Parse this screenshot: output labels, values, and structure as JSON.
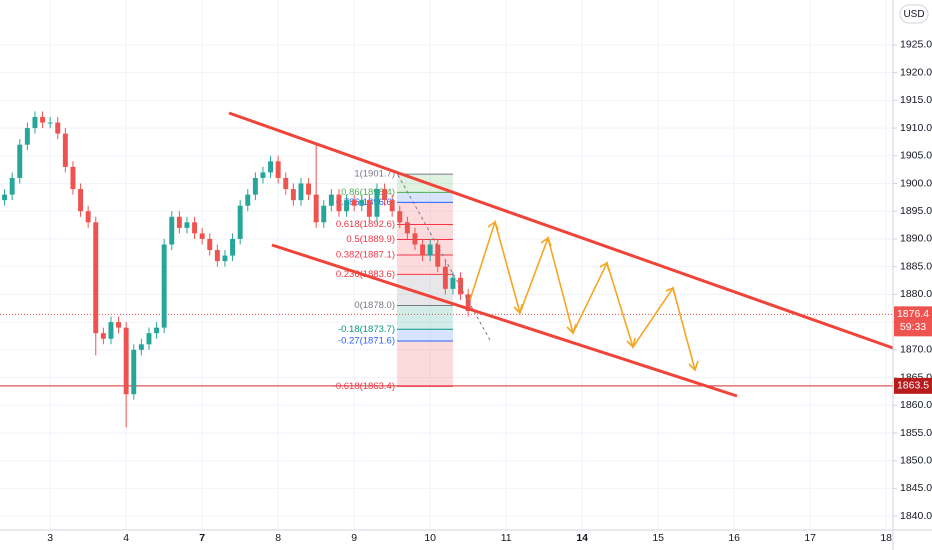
{
  "chart_data": {
    "type": "candlestick",
    "currency": "USD",
    "x": [
      -0.6,
      -0.5,
      -0.4,
      -0.3,
      -0.2,
      -0.1,
      0,
      0.1,
      0.2,
      0.3,
      0.4,
      0.5,
      0.6,
      0.7,
      0.8,
      0.9,
      1,
      1.1,
      1.2,
      1.3,
      1.4,
      1.5,
      1.6,
      1.7,
      1.8,
      1.9,
      2,
      2.1,
      2.2,
      2.3,
      2.4,
      2.5,
      2.6,
      2.7,
      2.8,
      2.9,
      3,
      3.1,
      3.2,
      3.3,
      3.4,
      3.5,
      3.6,
      3.7,
      3.8,
      3.9,
      4,
      4.1,
      4.2,
      4.3,
      4.4,
      4.5,
      4.6,
      4.7,
      4.8,
      4.9,
      5,
      5.1,
      5.2,
      5.3,
      5.4,
      5.5
    ],
    "open": [
      1897,
      1898,
      1901,
      1907,
      1910,
      1912,
      1911,
      1911,
      1909,
      1903,
      1899,
      1895,
      1893,
      1873,
      1872,
      1875,
      1874,
      1862,
      1870,
      1871,
      1873,
      1874,
      1889,
      1894,
      1892,
      1893,
      1891,
      1890,
      1888,
      1886,
      1887,
      1890,
      1896,
      1898,
      1901,
      1902,
      1904,
      1901,
      1899,
      1897,
      1900,
      1898,
      1893,
      1896,
      1898,
      1895,
      1897,
      1896,
      1897,
      1894,
      1899,
      1897,
      1895,
      1893,
      1891,
      1889,
      1887,
      1889,
      1885,
      1881,
      1883,
      1880
    ],
    "high": [
      1899,
      1902,
      1908,
      1911,
      1913,
      1913,
      1912,
      1912,
      1910,
      1904,
      1900,
      1896,
      1894,
      1874,
      1876,
      1876,
      1875,
      1871,
      1872,
      1874,
      1875,
      1890,
      1895,
      1895,
      1894,
      1894,
      1892,
      1891,
      1889,
      1888,
      1891,
      1897,
      1899,
      1902,
      1903,
      1905,
      1905,
      1902,
      1900,
      1901,
      1901,
      1907,
      1897,
      1899,
      1899,
      1898,
      1898,
      1898,
      1898,
      1900,
      1900,
      1898,
      1896,
      1894,
      1892,
      1890,
      1890,
      1890,
      1886,
      1884,
      1884,
      1881
    ],
    "low": [
      1896,
      1897,
      1900,
      1906,
      1909,
      1910,
      1910,
      1908,
      1902,
      1898,
      1894,
      1892,
      1869,
      1871,
      1871,
      1873,
      1856,
      1861,
      1869,
      1870,
      1872,
      1873,
      1888,
      1891,
      1891,
      1890,
      1889,
      1887,
      1885,
      1885,
      1886,
      1889,
      1895,
      1897,
      1900,
      1901,
      1900,
      1898,
      1896,
      1896,
      1897,
      1892,
      1892,
      1895,
      1894,
      1894,
      1895,
      1895,
      1893,
      1893,
      1896,
      1894,
      1892,
      1890,
      1888,
      1886,
      1886,
      1884,
      1880,
      1880,
      1879,
      1876
    ],
    "close": [
      1898,
      1901,
      1907,
      1910,
      1912,
      1911,
      1911,
      1909,
      1903,
      1899,
      1895,
      1893,
      1873,
      1872,
      1875,
      1874,
      1862,
      1870,
      1871,
      1873,
      1874,
      1889,
      1894,
      1892,
      1893,
      1891,
      1890,
      1888,
      1886,
      1887,
      1890,
      1896,
      1898,
      1901,
      1902,
      1904,
      1901,
      1899,
      1897,
      1900,
      1898,
      1893,
      1896,
      1898,
      1895,
      1897,
      1896,
      1897,
      1894,
      1899,
      1897,
      1895,
      1893,
      1891,
      1889,
      1887,
      1889,
      1885,
      1881,
      1883,
      1880,
      1877
    ],
    "up_color": "#26a69a",
    "down_color": "#ef5350",
    "xlim": [
      -0.66,
      11.09
    ],
    "xticks": [
      {
        "value": 0,
        "label": "3"
      },
      {
        "value": 1,
        "label": "4"
      },
      {
        "value": 2,
        "label": "7"
      },
      {
        "value": 3,
        "label": "8"
      },
      {
        "value": 4,
        "label": "9"
      },
      {
        "value": 5,
        "label": "10"
      },
      {
        "value": 6,
        "label": "11"
      },
      {
        "value": 7,
        "label": "14"
      },
      {
        "value": 8,
        "label": "15"
      },
      {
        "value": 9,
        "label": "16"
      },
      {
        "value": 10,
        "label": "17"
      },
      {
        "value": 11,
        "label": "18"
      }
    ],
    "ylim": [
      1837.5,
      1933.1
    ],
    "yticks": [
      {
        "value": 1840,
        "label": "1840.0"
      },
      {
        "value": 1845,
        "label": "1845.0"
      },
      {
        "value": 1850,
        "label": "1850.0"
      },
      {
        "value": 1855,
        "label": "1855.0"
      },
      {
        "value": 1860,
        "label": "1860.0"
      },
      {
        "value": 1865,
        "label": "1865.0"
      },
      {
        "value": 1870,
        "label": "1870.0"
      },
      {
        "value": 1875,
        "label": "1875.0"
      },
      {
        "value": 1880,
        "label": "1880.0"
      },
      {
        "value": 1885,
        "label": "1885.0"
      },
      {
        "value": 1890,
        "label": "1890.0"
      },
      {
        "value": 1895,
        "label": "1895.0"
      },
      {
        "value": 1900,
        "label": "1900.0"
      },
      {
        "value": 1905,
        "label": "1905.0"
      },
      {
        "value": 1910,
        "label": "1910.0"
      },
      {
        "value": 1915,
        "label": "1915.0"
      },
      {
        "value": 1920,
        "label": "1920.0"
      },
      {
        "value": 1925,
        "label": "1925.0"
      }
    ],
    "grid": true,
    "last_price": 1876.4,
    "countdown": "59:33",
    "horizontal_level": 1863.5,
    "fib_levels": [
      {
        "value": 1901.7,
        "label": "1(1901.7)",
        "color": "#787b86"
      },
      {
        "value": 1898.4,
        "label": "0.86(1898.4)",
        "color": "#4caf50"
      },
      {
        "value": 1896.6,
        "label": "0.786(1896.6)",
        "color": "#2962ff"
      },
      {
        "value": 1892.6,
        "label": "0.618(1892.6)",
        "color": "#f23645"
      },
      {
        "value": 1889.9,
        "label": "0.5(1889.9)",
        "color": "#f23645"
      },
      {
        "value": 1887.1,
        "label": "0.382(1887.1)",
        "color": "#f23645"
      },
      {
        "value": 1883.6,
        "label": "0.236(1883.6)",
        "color": "#f23645"
      },
      {
        "value": 1878.0,
        "label": "0(1878.0)",
        "color": "#787b86"
      },
      {
        "value": 1873.7,
        "label": "-0.18(1873.7)",
        "color": "#089981"
      },
      {
        "value": 1871.6,
        "label": "-0.27(1871.6)",
        "color": "#2962ff"
      },
      {
        "value": 1863.4,
        "label": "-0.618(1863.4)",
        "color": "#f23645"
      }
    ]
  }
}
